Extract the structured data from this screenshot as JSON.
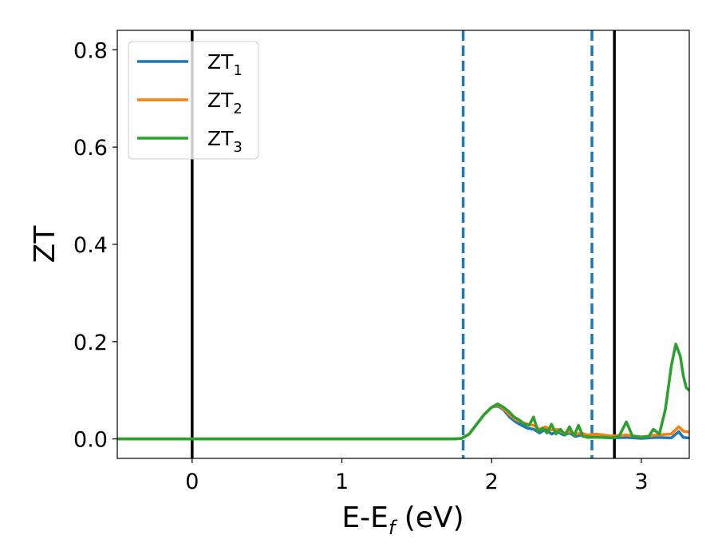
{
  "chart_data": {
    "type": "line",
    "xlabel": {
      "main": "E-E",
      "sub": "f",
      "unit": " (eV)"
    },
    "ylabel": "ZT",
    "xlim": [
      -0.5,
      3.32
    ],
    "ylim": [
      -0.04,
      0.84
    ],
    "x_ticks": [
      0,
      1,
      2,
      3
    ],
    "x_tick_labels": [
      "0",
      "1",
      "2",
      "3"
    ],
    "y_ticks": [
      0.0,
      0.2,
      0.4,
      0.6,
      0.8
    ],
    "y_tick_labels": [
      "0.0",
      "0.2",
      "0.4",
      "0.6",
      "0.8"
    ],
    "grid": false,
    "legend_position": "top-left",
    "vertical_lines": [
      {
        "x": 0.0,
        "style": "solid",
        "color": "#000000"
      },
      {
        "x": 1.81,
        "style": "dashed",
        "color": "#1f77b4"
      },
      {
        "x": 2.67,
        "style": "dashed",
        "color": "#1f77b4"
      },
      {
        "x": 2.82,
        "style": "solid",
        "color": "#000000"
      }
    ],
    "series": [
      {
        "name": {
          "main": "ZT",
          "sub": "1"
        },
        "color": "#1f77b4",
        "x": [
          -0.5,
          1.75,
          1.8,
          1.85,
          1.9,
          1.95,
          2.0,
          2.04,
          2.08,
          2.12,
          2.16,
          2.2,
          2.24,
          2.28,
          2.32,
          2.36,
          2.4,
          2.44,
          2.48,
          2.52,
          2.56,
          2.6,
          2.64,
          2.7,
          2.8,
          2.9,
          3.0,
          3.1,
          3.2,
          3.25,
          3.28,
          3.32
        ],
        "values": [
          0.0,
          0.0,
          0.001,
          0.01,
          0.03,
          0.05,
          0.065,
          0.068,
          0.06,
          0.045,
          0.035,
          0.028,
          0.022,
          0.02,
          0.012,
          0.02,
          0.01,
          0.015,
          0.008,
          0.012,
          0.005,
          0.008,
          0.003,
          0.004,
          0.002,
          0.003,
          0.001,
          0.003,
          0.002,
          0.015,
          0.003,
          0.002
        ]
      },
      {
        "name": {
          "main": "ZT",
          "sub": "2"
        },
        "color": "#ff7f0e",
        "x": [
          -0.5,
          1.75,
          1.8,
          1.85,
          1.9,
          1.95,
          2.0,
          2.04,
          2.08,
          2.12,
          2.16,
          2.2,
          2.24,
          2.28,
          2.32,
          2.36,
          2.4,
          2.44,
          2.48,
          2.52,
          2.56,
          2.6,
          2.64,
          2.7,
          2.8,
          2.9,
          3.0,
          3.1,
          3.2,
          3.25,
          3.28,
          3.32
        ],
        "values": [
          0.0,
          0.0,
          0.001,
          0.01,
          0.03,
          0.05,
          0.065,
          0.07,
          0.062,
          0.05,
          0.04,
          0.035,
          0.03,
          0.028,
          0.02,
          0.025,
          0.018,
          0.02,
          0.012,
          0.015,
          0.01,
          0.012,
          0.008,
          0.01,
          0.006,
          0.008,
          0.004,
          0.008,
          0.01,
          0.025,
          0.016,
          0.014
        ]
      },
      {
        "name": {
          "main": "ZT",
          "sub": "3"
        },
        "color": "#2ca02c",
        "x": [
          -0.5,
          1.75,
          1.8,
          1.85,
          1.9,
          1.95,
          2.0,
          2.04,
          2.08,
          2.12,
          2.15,
          2.18,
          2.22,
          2.25,
          2.28,
          2.31,
          2.34,
          2.37,
          2.4,
          2.43,
          2.46,
          2.49,
          2.52,
          2.55,
          2.58,
          2.61,
          2.65,
          2.7,
          2.75,
          2.8,
          2.85,
          2.9,
          2.94,
          3.0,
          3.05,
          3.08,
          3.12,
          3.16,
          3.2,
          3.23,
          3.26,
          3.28,
          3.3,
          3.32
        ],
        "values": [
          0.0,
          0.0,
          0.001,
          0.01,
          0.03,
          0.05,
          0.065,
          0.072,
          0.065,
          0.055,
          0.045,
          0.04,
          0.03,
          0.028,
          0.045,
          0.015,
          0.022,
          0.012,
          0.03,
          0.01,
          0.02,
          0.008,
          0.025,
          0.006,
          0.028,
          0.005,
          0.004,
          0.003,
          0.004,
          0.002,
          0.005,
          0.035,
          0.006,
          0.004,
          0.005,
          0.02,
          0.01,
          0.06,
          0.15,
          0.195,
          0.17,
          0.13,
          0.105,
          0.1
        ]
      }
    ]
  }
}
